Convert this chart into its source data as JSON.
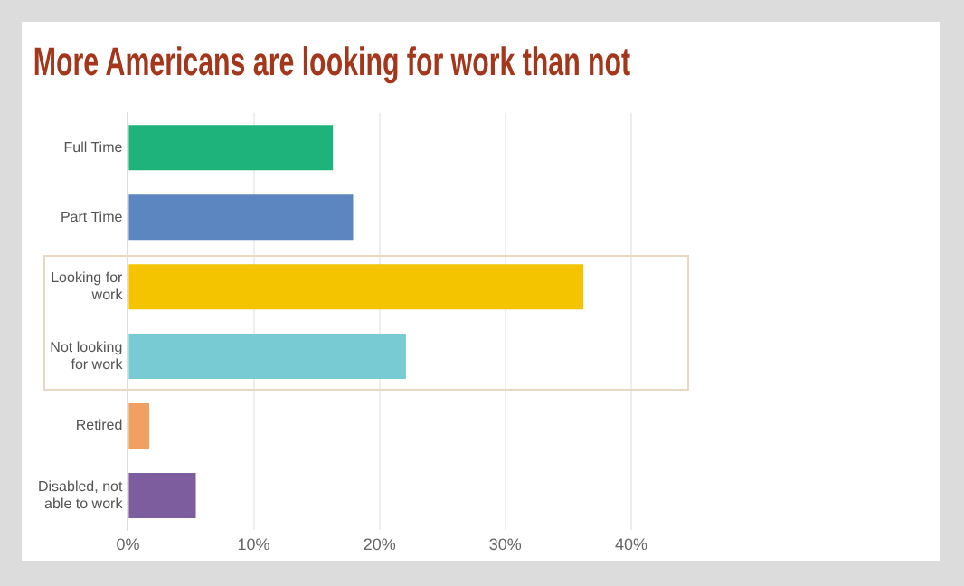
{
  "chart_data": {
    "type": "bar",
    "orientation": "horizontal",
    "title": "More Americans are looking for work than not",
    "categories": [
      "Full Time",
      "Part Time",
      "Looking for work",
      "Not looking for work",
      "Retired",
      "Disabled, not able to work"
    ],
    "values": [
      16.3,
      17.9,
      36.2,
      22.1,
      1.7,
      5.4
    ],
    "colors": [
      "#1db37a",
      "#5b86c0",
      "#f5c400",
      "#78cbd3",
      "#f0a060",
      "#7d5d9e"
    ],
    "xlim": [
      0,
      40
    ],
    "xticks": [
      {
        "value": 0,
        "label": "0%"
      },
      {
        "value": 10,
        "label": "10%"
      },
      {
        "value": 20,
        "label": "20%"
      },
      {
        "value": 30,
        "label": "30%"
      },
      {
        "value": 40,
        "label": "40%"
      }
    ],
    "grid": "x",
    "legend": false
  }
}
